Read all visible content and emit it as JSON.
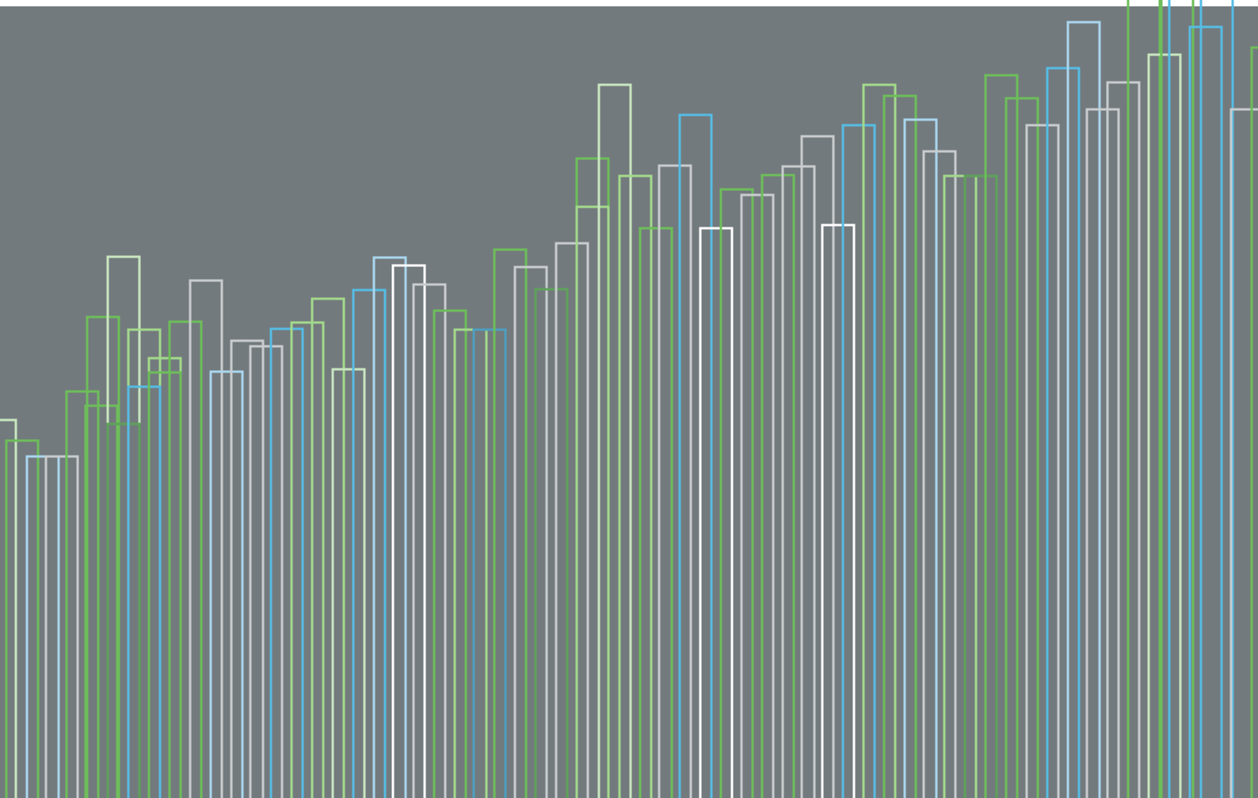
{
  "artwork": {
    "background_color": "#737A7D",
    "motif": "overlapping-outlined-bars",
    "palette": [
      "#6DBE5A",
      "#C8E6C0",
      "#A3D98C",
      "#56BCE4",
      "#A9D6EE",
      "#C9CCCE",
      "#FFFFFF",
      "#4E9FC0",
      "#5EA25A"
    ]
  }
}
